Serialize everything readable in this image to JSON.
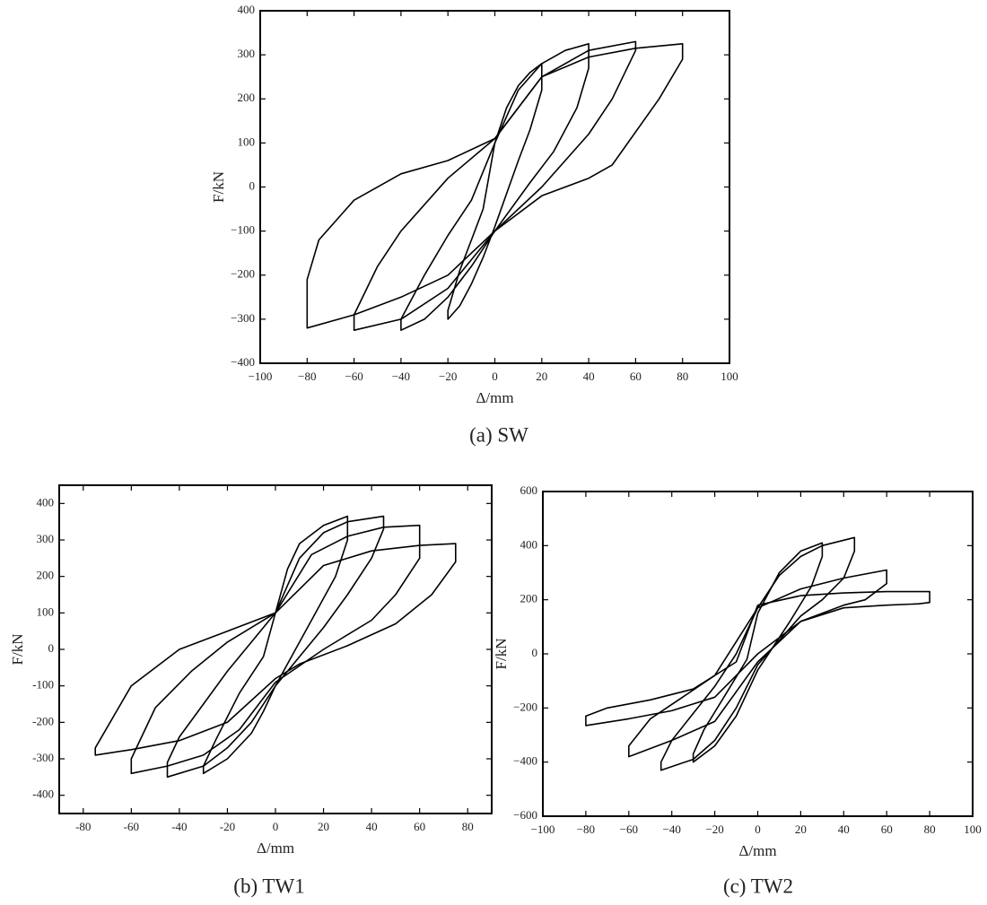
{
  "chart_data": [
    {
      "type": "line",
      "caption": "(a) SW",
      "xlabel": "Δ/mm",
      "ylabel": "F/kN",
      "color": "#000000",
      "xlim": [
        -100,
        100
      ],
      "ylim": [
        -400,
        400
      ],
      "xticks": [
        {
          "value": -100,
          "label": "−100"
        },
        {
          "value": -80,
          "label": "−80"
        },
        {
          "value": -60,
          "label": "−60"
        },
        {
          "value": -40,
          "label": "−40"
        },
        {
          "value": -20,
          "label": "−20"
        },
        0,
        20,
        40,
        60,
        80,
        100
      ],
      "yticks": [
        {
          "value": -400,
          "label": "−400"
        },
        {
          "value": -300,
          "label": "−300"
        },
        {
          "value": -200,
          "label": "−200"
        },
        {
          "value": -100,
          "label": "−100"
        },
        0,
        100,
        200,
        300,
        400
      ],
      "series": [
        {
          "x": [
            0,
            20,
            40,
            60,
            80,
            80,
            70,
            50,
            40,
            20,
            0,
            -20,
            -40,
            -60,
            -80,
            -80,
            -75,
            -60,
            -40,
            -20,
            0
          ],
          "values": [
            110,
            250,
            295,
            315,
            325,
            290,
            200,
            50,
            20,
            -20,
            -100,
            -200,
            -250,
            -290,
            -320,
            -210,
            -120,
            -30,
            30,
            60,
            110
          ]
        },
        {
          "x": [
            0,
            20,
            40,
            60,
            60,
            50,
            40,
            20,
            0,
            -20,
            -40,
            -60,
            -60,
            -50,
            -40,
            -20,
            0
          ],
          "values": [
            110,
            250,
            310,
            330,
            310,
            200,
            120,
            0,
            -100,
            -230,
            -300,
            -325,
            -290,
            -180,
            -100,
            20,
            110
          ]
        },
        {
          "x": [
            0,
            10,
            20,
            30,
            40,
            40,
            35,
            25,
            15,
            0,
            -10,
            -20,
            -30,
            -40,
            -40,
            -30,
            -20,
            -10,
            0
          ],
          "values": [
            100,
            220,
            280,
            310,
            325,
            270,
            180,
            80,
            10,
            -100,
            -180,
            -250,
            -300,
            -325,
            -300,
            -200,
            -110,
            -30,
            100
          ]
        },
        {
          "x": [
            0,
            5,
            10,
            15,
            20,
            20,
            15,
            10,
            0,
            -5,
            -10,
            -15,
            -20,
            -20,
            -15,
            -10,
            -5,
            0
          ],
          "values": [
            100,
            180,
            230,
            260,
            280,
            220,
            130,
            60,
            -90,
            -160,
            -220,
            -270,
            -300,
            -280,
            -190,
            -120,
            -50,
            100
          ]
        }
      ]
    },
    {
      "type": "line",
      "caption": "(b) TW1",
      "xlabel": "Δ/mm",
      "ylabel": "F/kN",
      "color": "#000000",
      "xlim": [
        -90,
        90
      ],
      "ylim": [
        -450,
        450
      ],
      "xticks": [
        -80,
        -60,
        -40,
        -20,
        0,
        20,
        40,
        60,
        80
      ],
      "yticks": [
        -400,
        -300,
        -200,
        -100,
        0,
        100,
        200,
        300,
        400
      ],
      "series": [
        {
          "x": [
            0,
            20,
            40,
            60,
            75,
            75,
            65,
            50,
            30,
            10,
            0,
            -20,
            -40,
            -60,
            -75,
            -75,
            -60,
            -40,
            -20,
            0
          ],
          "values": [
            100,
            230,
            270,
            285,
            290,
            240,
            150,
            70,
            10,
            -40,
            -80,
            -200,
            -250,
            -275,
            -290,
            -270,
            -100,
            0,
            50,
            100
          ]
        },
        {
          "x": [
            0,
            15,
            30,
            45,
            60,
            60,
            50,
            40,
            20,
            0,
            -15,
            -30,
            -45,
            -60,
            -60,
            -50,
            -35,
            -20,
            0
          ],
          "values": [
            100,
            260,
            310,
            335,
            340,
            250,
            150,
            80,
            0,
            -90,
            -220,
            -290,
            -320,
            -340,
            -300,
            -160,
            -60,
            20,
            100
          ]
        },
        {
          "x": [
            0,
            10,
            20,
            30,
            45,
            45,
            40,
            30,
            20,
            10,
            0,
            -10,
            -20,
            -30,
            -45,
            -45,
            -40,
            -30,
            -20,
            -10,
            0
          ],
          "values": [
            100,
            250,
            320,
            350,
            365,
            330,
            250,
            150,
            60,
            -20,
            -100,
            -200,
            -270,
            -320,
            -350,
            -310,
            -240,
            -150,
            -60,
            20,
            100
          ]
        },
        {
          "x": [
            0,
            5,
            10,
            20,
            30,
            30,
            25,
            15,
            5,
            0,
            -5,
            -10,
            -20,
            -30,
            -30,
            -25,
            -15,
            -5,
            0
          ],
          "values": [
            100,
            220,
            290,
            340,
            365,
            300,
            200,
            80,
            -40,
            -100,
            -170,
            -230,
            -300,
            -340,
            -320,
            -250,
            -120,
            -20,
            100
          ]
        }
      ]
    },
    {
      "type": "line",
      "caption": "(c) TW2",
      "xlabel": "Δ/mm",
      "ylabel": "F/kN",
      "color": "#000000",
      "xlim": [
        -100,
        100
      ],
      "ylim": [
        -600,
        600
      ],
      "xticks": [
        {
          "value": -100,
          "label": "−100"
        },
        {
          "value": -80,
          "label": "−80"
        },
        {
          "value": -60,
          "label": "−60"
        },
        {
          "value": -40,
          "label": "−40"
        },
        {
          "value": -20,
          "label": "−20"
        },
        0,
        20,
        40,
        60,
        80,
        100
      ],
      "yticks": [
        {
          "value": -600,
          "label": "−600"
        },
        {
          "value": -400,
          "label": "−400"
        },
        {
          "value": -200,
          "label": "−200"
        },
        0,
        200,
        400,
        600
      ],
      "series": [
        {
          "x": [
            0,
            20,
            40,
            60,
            80,
            80,
            75,
            60,
            40,
            20,
            0,
            -20,
            -40,
            -60,
            -80,
            -80,
            -70,
            -50,
            -30,
            -10,
            0
          ],
          "values": [
            180,
            215,
            225,
            230,
            230,
            190,
            185,
            180,
            170,
            120,
            0,
            -160,
            -210,
            -240,
            -265,
            -230,
            -200,
            -170,
            -130,
            -30,
            180
          ]
        },
        {
          "x": [
            0,
            20,
            40,
            60,
            60,
            50,
            40,
            20,
            0,
            -20,
            -40,
            -60,
            -60,
            -50,
            -35,
            -20,
            0
          ],
          "values": [
            170,
            240,
            280,
            310,
            260,
            200,
            180,
            120,
            -30,
            -250,
            -320,
            -380,
            -340,
            -240,
            -160,
            -80,
            170
          ]
        },
        {
          "x": [
            0,
            10,
            20,
            30,
            45,
            45,
            40,
            30,
            20,
            0,
            -10,
            -20,
            -30,
            -45,
            -45,
            -40,
            -30,
            -20,
            -10,
            0
          ],
          "values": [
            170,
            290,
            360,
            400,
            430,
            380,
            280,
            200,
            140,
            -40,
            -200,
            -320,
            -390,
            -430,
            -400,
            -320,
            -220,
            -120,
            0,
            170
          ]
        },
        {
          "x": [
            0,
            10,
            20,
            30,
            30,
            25,
            15,
            5,
            0,
            -10,
            -20,
            -30,
            -30,
            -25,
            -15,
            -5,
            0
          ],
          "values": [
            150,
            300,
            380,
            410,
            360,
            250,
            120,
            0,
            -60,
            -230,
            -340,
            -400,
            -370,
            -280,
            -150,
            -20,
            150
          ]
        }
      ]
    }
  ]
}
